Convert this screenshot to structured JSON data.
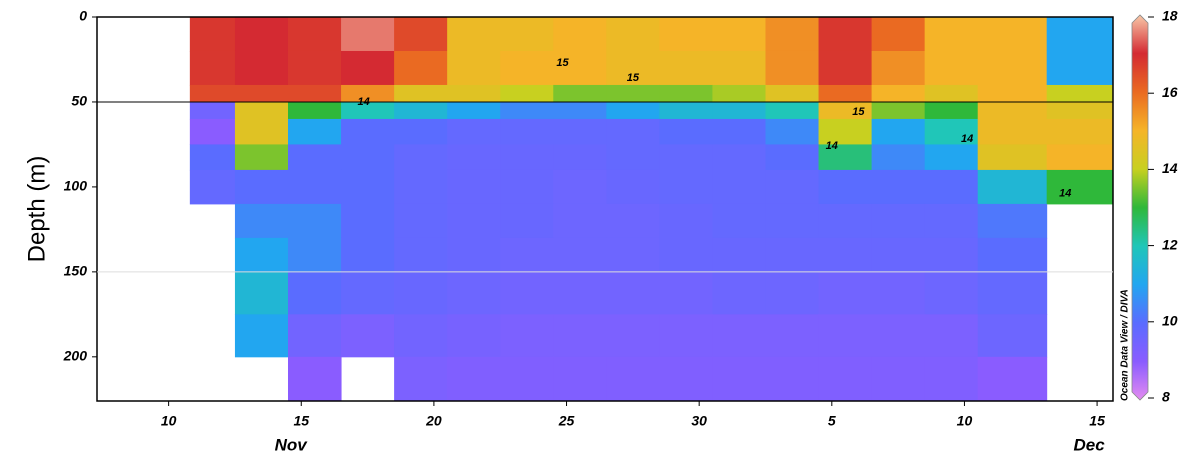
{
  "chart_data": {
    "type": "heatmap",
    "y_label": "Depth (m)",
    "watermark": "Ocean Data View / DIVA",
    "x_edges": [
      10.8,
      12.5,
      14.5,
      16.5,
      18.5,
      20.5,
      22.5,
      24.5,
      26.5,
      28.5,
      30.5,
      32.5,
      34.5,
      36.5,
      38.5,
      40.5,
      43.1,
      45.6
    ],
    "depth_edges": [
      0,
      20,
      40,
      50,
      60,
      75,
      90,
      110,
      130,
      150,
      175,
      200,
      226
    ],
    "values": [
      [
        16.8,
        17,
        16.8,
        17.5,
        16.5,
        14.8,
        14.8,
        15,
        14.8,
        15,
        15,
        15.5,
        16.8,
        16,
        15,
        15,
        11
      ],
      [
        16.8,
        17,
        16.8,
        17,
        16,
        14.8,
        15,
        15,
        14.8,
        14.8,
        14.8,
        15.5,
        16.8,
        15.5,
        15,
        15,
        11
      ],
      [
        16.5,
        16.5,
        16.5,
        15.5,
        14.5,
        14.5,
        14,
        13.5,
        13.5,
        13.5,
        13.8,
        14.5,
        16,
        15,
        14.5,
        15,
        14
      ],
      [
        9.5,
        14.5,
        13,
        12,
        11.5,
        11,
        10.5,
        10.5,
        11,
        11.5,
        11.5,
        12,
        14.8,
        13.5,
        13,
        14.8,
        14.5
      ],
      [
        9,
        14.5,
        11,
        10,
        10,
        9.8,
        9.8,
        9.8,
        9.8,
        10,
        10,
        10.5,
        14,
        11,
        12,
        14.8,
        14.8
      ],
      [
        10,
        13.5,
        10,
        10,
        9.8,
        9.7,
        9.7,
        9.7,
        9.8,
        9.8,
        9.8,
        10,
        12.5,
        10.5,
        11,
        14.5,
        15
      ],
      [
        9.8,
        10,
        10,
        10,
        9.8,
        9.7,
        9.7,
        9.6,
        9.7,
        9.8,
        9.8,
        9.8,
        10,
        10,
        10,
        11.5,
        13
      ],
      [
        null,
        10.5,
        10.5,
        10,
        9.8,
        9.7,
        9.7,
        9.6,
        9.6,
        9.7,
        9.8,
        9.8,
        9.8,
        9.8,
        9.8,
        10.2,
        null
      ],
      [
        null,
        11,
        10.5,
        10,
        9.8,
        9.7,
        9.6,
        9.6,
        9.6,
        9.7,
        9.7,
        9.7,
        9.7,
        9.7,
        9.7,
        10,
        null
      ],
      [
        null,
        11.5,
        10,
        9.8,
        9.7,
        9.6,
        9.5,
        9.5,
        9.5,
        9.5,
        9.6,
        9.6,
        9.5,
        9.5,
        9.6,
        9.8,
        null
      ],
      [
        null,
        11,
        9.5,
        9.3,
        9.5,
        9.4,
        9.3,
        9.3,
        9.3,
        9.3,
        9.3,
        9.3,
        9.3,
        9.3,
        9.3,
        9.6,
        null
      ],
      [
        null,
        null,
        9,
        null,
        9.3,
        9.2,
        9.2,
        9.2,
        9.2,
        9.2,
        9.2,
        9.2,
        9.2,
        9.2,
        9.2,
        9,
        null
      ]
    ],
    "xlim": [
      7.3,
      45.6
    ],
    "xticks": [
      10,
      15,
      20,
      25,
      30,
      {
        "value": 35,
        "label": "5"
      },
      {
        "value": 40,
        "label": "10"
      },
      {
        "value": 45,
        "label": "15"
      }
    ],
    "month_ticks": [
      {
        "value": 14.6,
        "label": "Nov"
      },
      {
        "value": 44.7,
        "label": "Dec"
      }
    ],
    "ylim": [
      0,
      226
    ],
    "yticks": [
      0,
      50,
      100,
      150,
      200
    ],
    "y_inverted": true,
    "reference_lines": [
      {
        "value": 50,
        "color": "#000000"
      },
      {
        "value": 150,
        "color": "#dddddd"
      }
    ],
    "colorbar": {
      "lim": [
        8,
        18
      ],
      "ticks": [
        8,
        10,
        12,
        14,
        16,
        18
      ],
      "colors": [
        "#e48cf0",
        "#8a5cff",
        "#5a6cff",
        "#22a6f0",
        "#20c6b8",
        "#2fb83a",
        "#c8d020",
        "#f5b428",
        "#ea6a22",
        "#d42a32",
        "#f8c8a8"
      ]
    },
    "contour_labels": [
      {
        "x": 24.85,
        "depth": 27,
        "value": 15
      },
      {
        "x": 27.5,
        "depth": 36,
        "value": 15
      },
      {
        "x": 17.35,
        "depth": 50,
        "value": 14
      },
      {
        "x": 36.0,
        "depth": 56,
        "value": 15
      },
      {
        "x": 35.0,
        "depth": 76,
        "value": 14
      },
      {
        "x": 40.1,
        "depth": 72,
        "value": 14
      },
      {
        "x": 43.8,
        "depth": 104,
        "value": 14
      }
    ]
  }
}
